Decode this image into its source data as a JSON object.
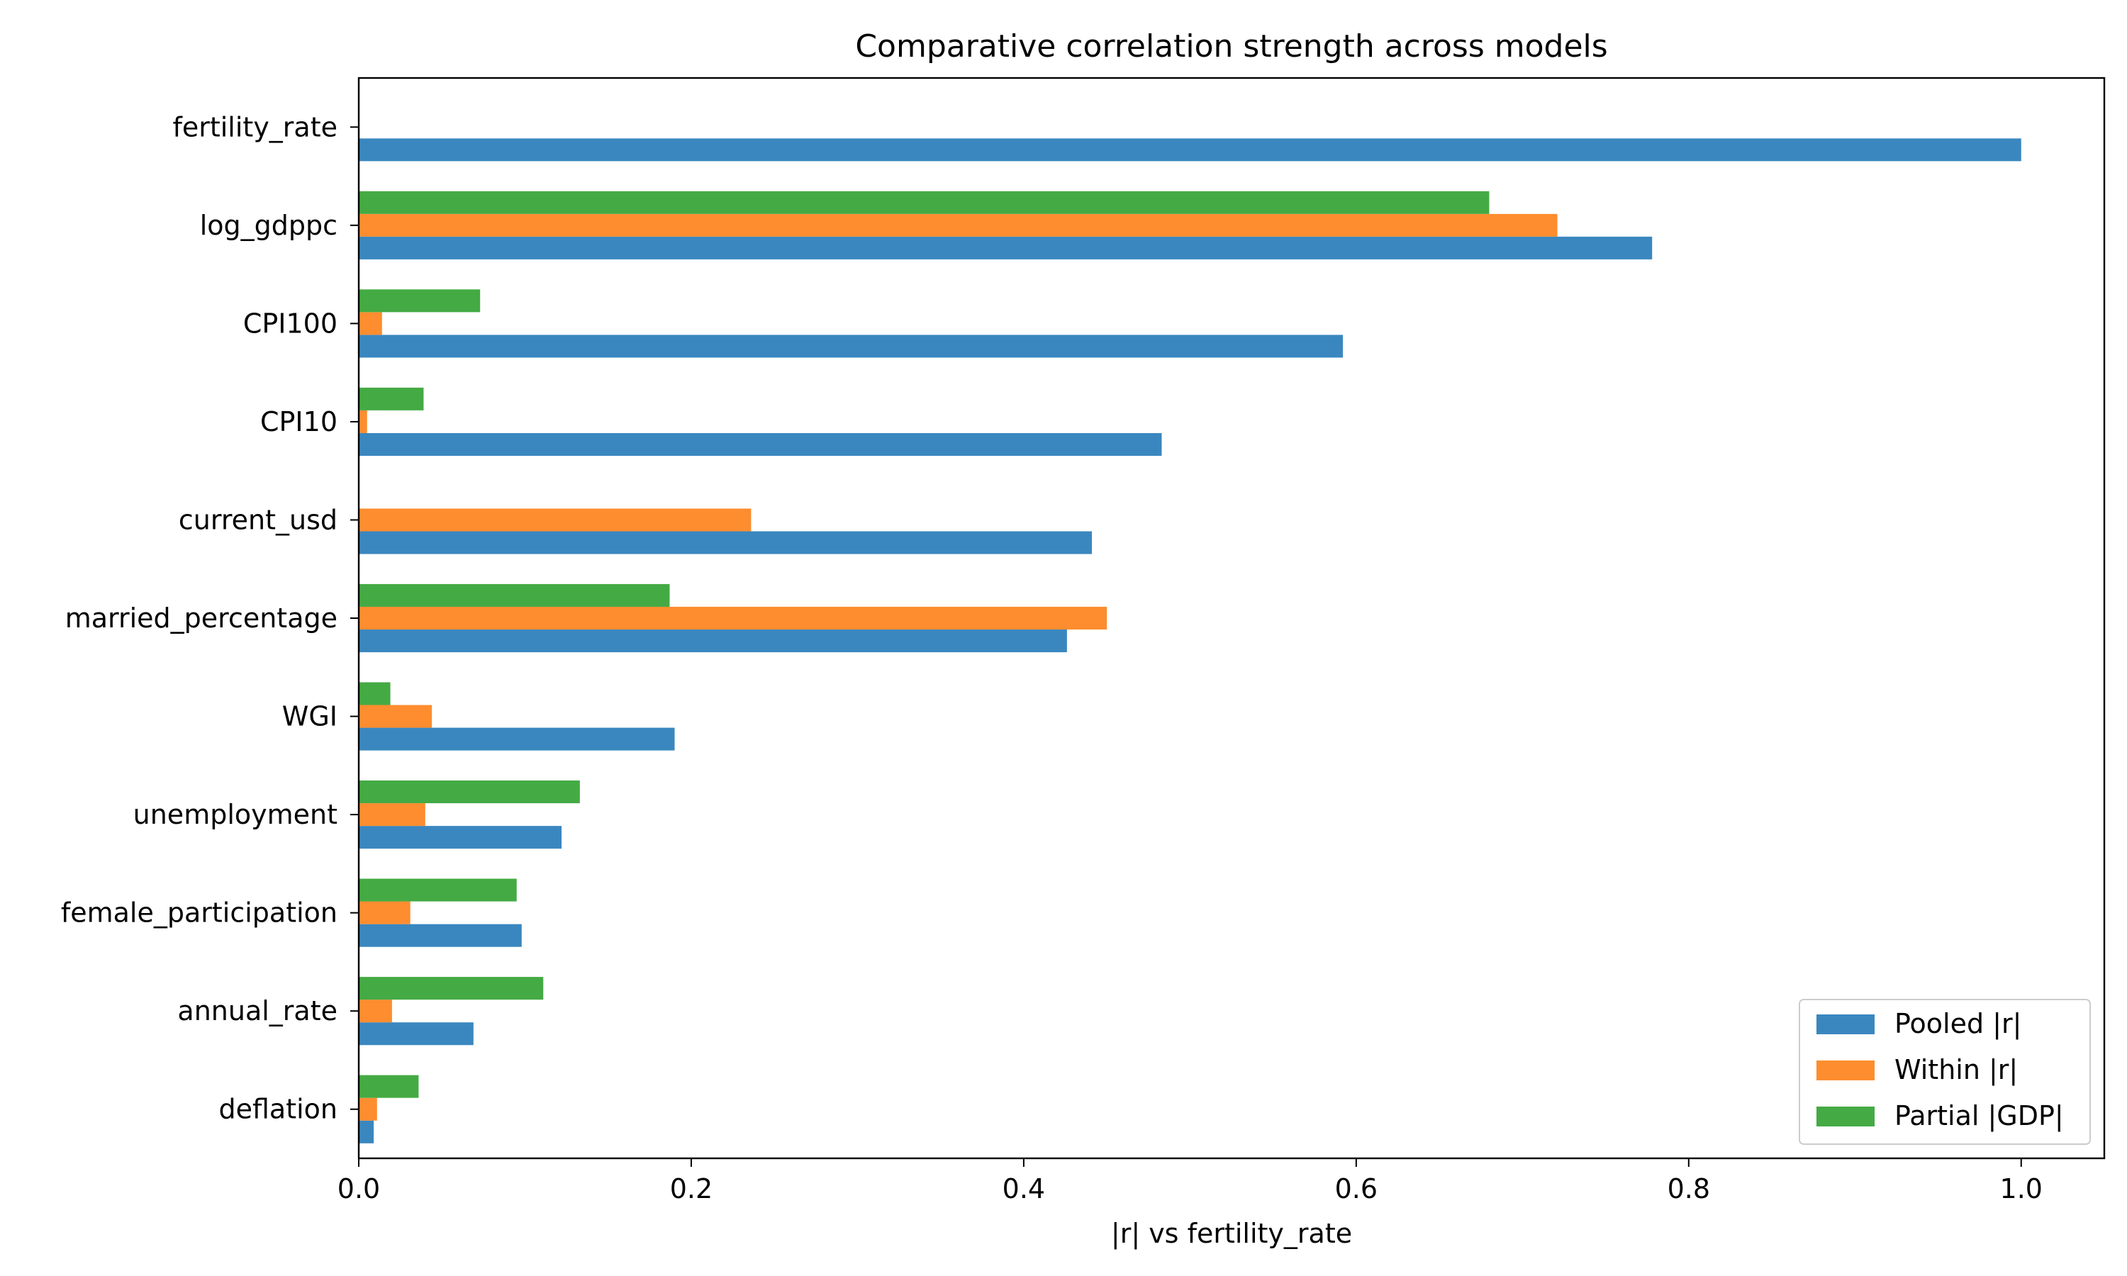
{
  "chart_data": {
    "type": "bar",
    "orientation": "horizontal",
    "title": "Comparative correlation strength across models",
    "xlabel": "|r| vs fertility_rate",
    "ylabel": "",
    "xlim": [
      0,
      1.05
    ],
    "xticks": [
      0.0,
      0.2,
      0.4,
      0.6,
      0.8,
      1.0
    ],
    "xtick_labels": [
      "0.0",
      "0.2",
      "0.4",
      "0.6",
      "0.8",
      "1.0"
    ],
    "grid": false,
    "legend_position": "lower-right",
    "categories": [
      "fertility_rate",
      "log_gdppc",
      "CPI100",
      "CPI10",
      "current_usd",
      "married_percentage",
      "WGI",
      "unemployment",
      "female_participation",
      "annual_rate",
      "deflation"
    ],
    "series": [
      {
        "name": "Pooled |r|",
        "color": "#3a87bf",
        "values": [
          1.0,
          0.778,
          0.592,
          0.483,
          0.441,
          0.426,
          0.19,
          0.122,
          0.098,
          0.069,
          0.009
        ]
      },
      {
        "name": "Within |r|",
        "color": "#fd8d2f",
        "values": [
          0.0,
          0.721,
          0.014,
          0.005,
          0.236,
          0.45,
          0.044,
          0.04,
          0.031,
          0.02,
          0.011
        ]
      },
      {
        "name": "Partial |GDP|",
        "color": "#44aa44",
        "values": [
          0.0,
          0.68,
          0.073,
          0.039,
          0.0,
          0.187,
          0.019,
          0.133,
          0.095,
          0.111,
          0.036
        ]
      }
    ]
  }
}
